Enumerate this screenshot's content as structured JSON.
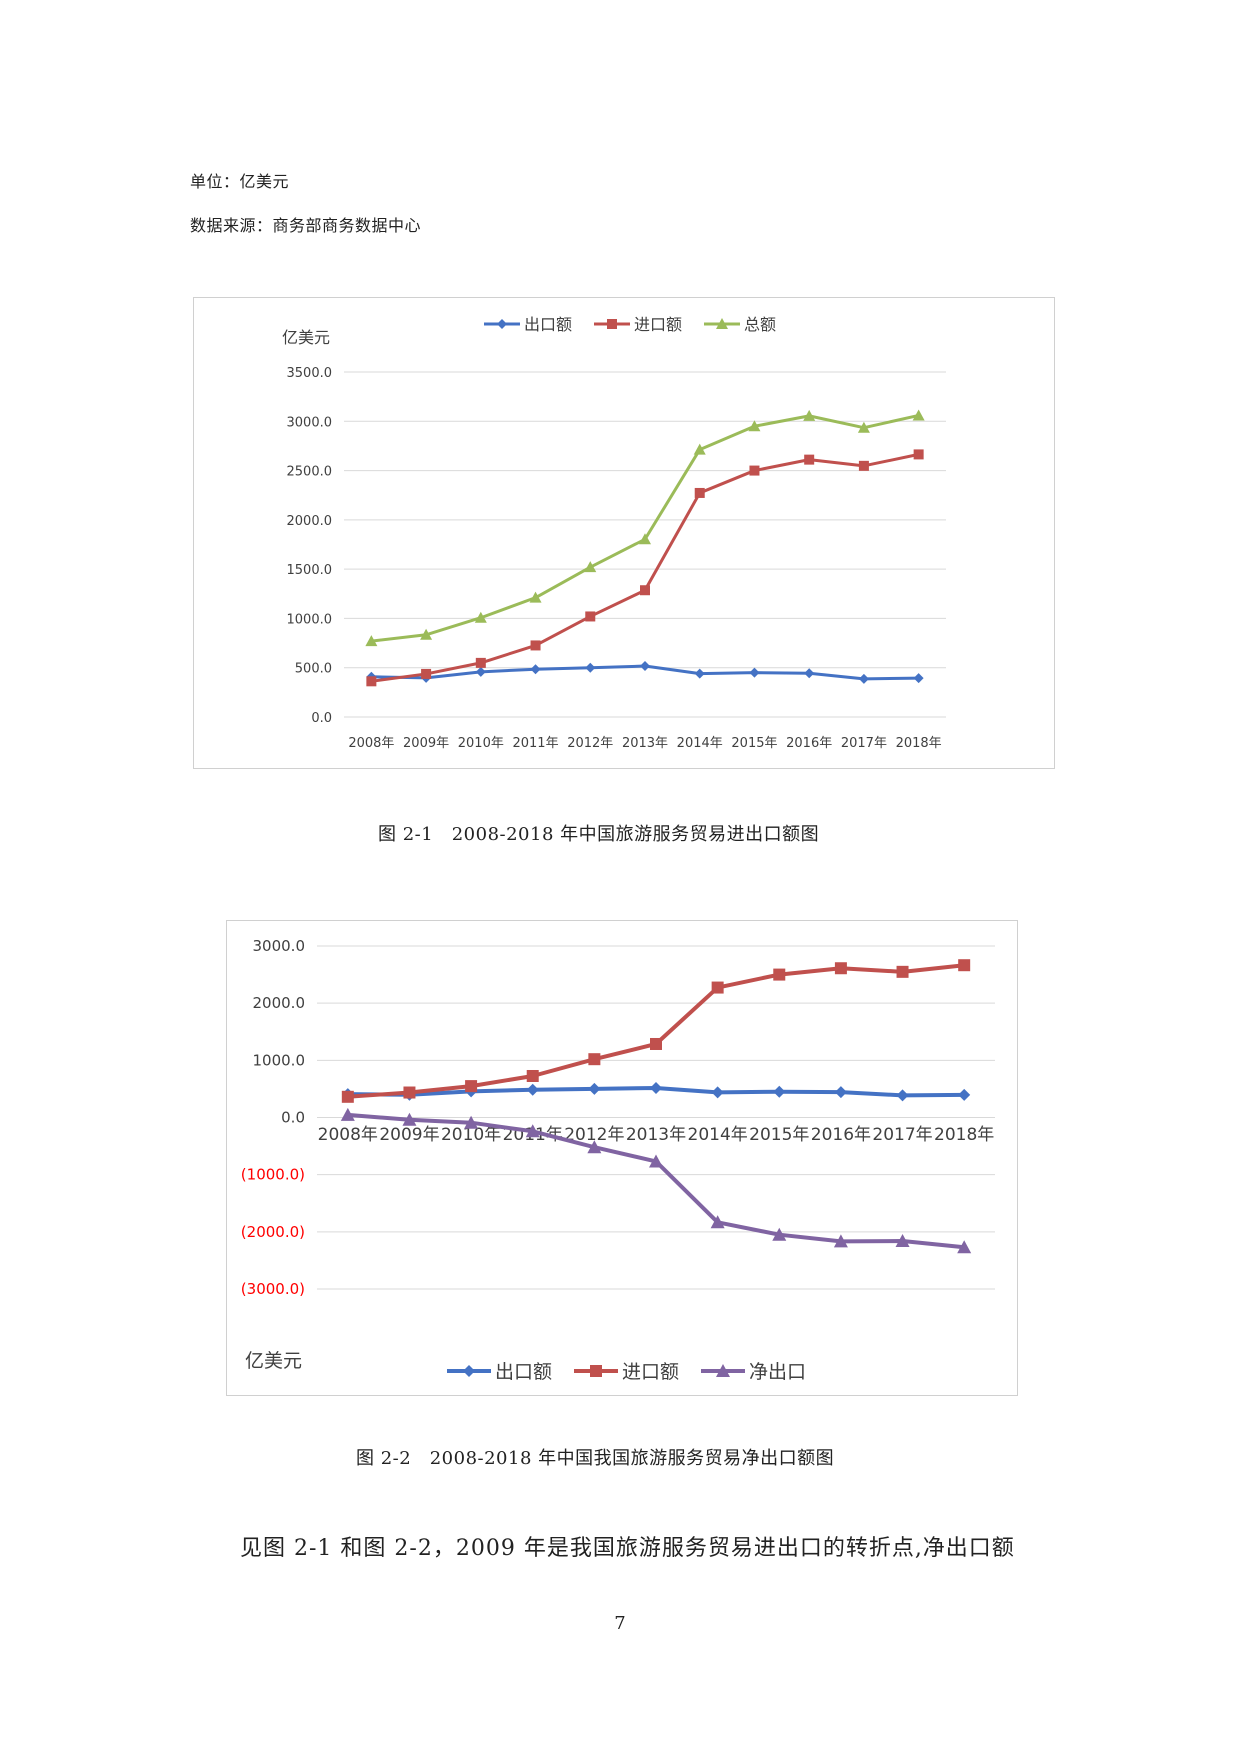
{
  "notes": {
    "unit": "单位：亿美元",
    "source": "数据来源：商务部商务数据中心"
  },
  "colors": {
    "export": "#4472C4",
    "import": "#C0504D",
    "total": "#9BBB59",
    "net": "#8064A2",
    "negative_label": "#FF0000"
  },
  "chart_data": [
    {
      "type": "line",
      "title": "",
      "ylabel": "亿美元",
      "ylim": [
        0,
        3500
      ],
      "yticks": [
        "0.0",
        "500.0",
        "1000.0",
        "1500.0",
        "2000.0",
        "2500.0",
        "3000.0",
        "3500.0"
      ],
      "yticks_values": [
        0,
        500,
        1000,
        1500,
        2000,
        2500,
        3000,
        3500
      ],
      "categories": [
        "2008年",
        "2009年",
        "2010年",
        "2011年",
        "2012年",
        "2013年",
        "2014年",
        "2015年",
        "2016年",
        "2017年",
        "2018年"
      ],
      "legend": "top",
      "series": [
        {
          "name": "出口额",
          "marker": "diamond",
          "color": "#4472C4",
          "values": [
            408,
            397,
            458,
            485,
            500,
            517,
            440,
            450,
            444,
            387,
            395
          ]
        },
        {
          "name": "进口额",
          "marker": "square",
          "color": "#C0504D",
          "values": [
            362,
            437,
            549,
            726,
            1020,
            1286,
            2273,
            2500,
            2611,
            2548,
            2664
          ]
        },
        {
          "name": "总额",
          "marker": "triangle",
          "color": "#9BBB59",
          "values": [
            770,
            834,
            1007,
            1211,
            1520,
            1803,
            2713,
            2950,
            3055,
            2935,
            3059
          ]
        }
      ]
    },
    {
      "type": "line",
      "title": "",
      "ylabel": "亿美元",
      "ylim": [
        -3000,
        3000
      ],
      "yticks": [
        "3000.0",
        "2000.0",
        "1000.0",
        "0.0",
        "(1000.0)",
        "(2000.0)",
        "(3000.0)"
      ],
      "yticks_values": [
        3000,
        2000,
        1000,
        0,
        -1000,
        -2000,
        -3000
      ],
      "categories": [
        "2008年",
        "2009年",
        "2010年",
        "2011年",
        "2012年",
        "2013年",
        "2014年",
        "2015年",
        "2016年",
        "2017年",
        "2018年"
      ],
      "legend": "bottom",
      "series": [
        {
          "name": "出口额",
          "marker": "diamond",
          "color": "#4472C4",
          "values": [
            408,
            397,
            458,
            485,
            500,
            517,
            440,
            450,
            444,
            387,
            395
          ]
        },
        {
          "name": "进口额",
          "marker": "square",
          "color": "#C0504D",
          "values": [
            362,
            437,
            549,
            726,
            1020,
            1286,
            2273,
            2500,
            2611,
            2548,
            2664
          ]
        },
        {
          "name": "净出口",
          "marker": "triangle",
          "color": "#8064A2",
          "values": [
            46,
            -40,
            -91,
            -241,
            -520,
            -769,
            -1833,
            -2050,
            -2167,
            -2161,
            -2269
          ]
        }
      ]
    }
  ],
  "captions": {
    "fig1": "图 2-1　2008-2018 年中国旅游服务贸易进出口额图",
    "fig2": "图 2-2　2008-2018 年中国我国旅游服务贸易净出口额图"
  },
  "body_text": "见图 2-1 和图 2-2，2009 年是我国旅游服务贸易进出口的转折点,净出口额",
  "page_number": "7"
}
